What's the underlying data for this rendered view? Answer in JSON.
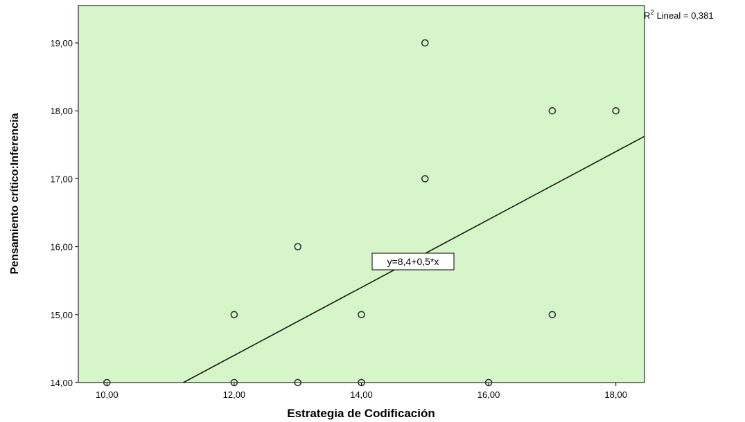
{
  "chart_data": {
    "type": "scatter",
    "title": "",
    "xlabel": "Estrategia de Codificación",
    "ylabel": "Pensamiento crítico:Inferencia",
    "xlim": [
      9.55,
      18.45
    ],
    "ylim": [
      14.0,
      19.55
    ],
    "x_ticks": [
      10,
      12,
      14,
      16,
      18
    ],
    "x_tick_labels": [
      "10,00",
      "12,00",
      "14,00",
      "16,00",
      "18,00"
    ],
    "y_ticks": [
      14,
      15,
      16,
      17,
      18,
      19
    ],
    "y_tick_labels": [
      "14,00",
      "15,00",
      "16,00",
      "17,00",
      "18,00",
      "19,00"
    ],
    "points": [
      {
        "x": 10,
        "y": 14
      },
      {
        "x": 12,
        "y": 14
      },
      {
        "x": 12,
        "y": 15
      },
      {
        "x": 13,
        "y": 14
      },
      {
        "x": 13,
        "y": 16
      },
      {
        "x": 14,
        "y": 14
      },
      {
        "x": 14,
        "y": 15
      },
      {
        "x": 15,
        "y": 17
      },
      {
        "x": 15,
        "y": 19
      },
      {
        "x": 16,
        "y": 14
      },
      {
        "x": 17,
        "y": 15
      },
      {
        "x": 17,
        "y": 18
      },
      {
        "x": 18,
        "y": 18
      }
    ],
    "fit_line": {
      "intercept": 8.4,
      "slope": 0.5,
      "equation_label": "y=8,4+0,5*x"
    },
    "r2_label": "R",
    "r2_superscript": "2",
    "r2_text": " Lineal = 0,381",
    "grid": false,
    "colors": {
      "plot_background": "#d6f5c8",
      "marker_stroke": "#333333",
      "line": "#1a1a1a",
      "axis": "#000000"
    }
  }
}
